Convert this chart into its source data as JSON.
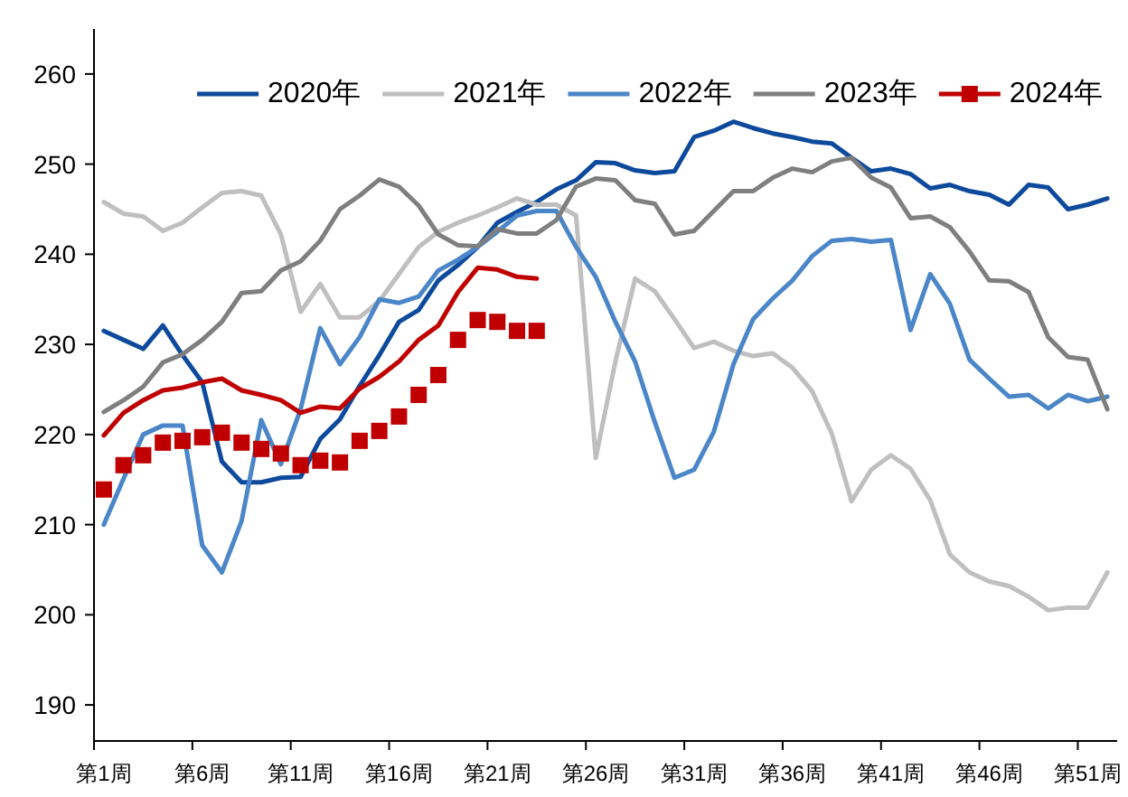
{
  "chart_data": {
    "type": "line",
    "categories": [
      "第1周",
      null,
      null,
      null,
      null,
      "第6周",
      null,
      null,
      null,
      null,
      "第11周",
      null,
      null,
      null,
      null,
      "第16周",
      null,
      null,
      null,
      null,
      "第21周",
      null,
      null,
      null,
      null,
      "第26周",
      null,
      null,
      null,
      null,
      "第31周",
      null,
      null,
      null,
      null,
      "第36周",
      null,
      null,
      null,
      null,
      "第41周",
      null,
      null,
      null,
      null,
      "第46周",
      null,
      null,
      null,
      null,
      "第51周",
      null
    ],
    "ylim": [
      186,
      265
    ],
    "yticks": [
      190,
      200,
      210,
      220,
      230,
      240,
      250,
      260
    ],
    "legend": "top right",
    "series": [
      {
        "name": "2020年",
        "color": "#0e4a9c",
        "values": [
          231.5,
          230.5,
          229.5,
          232.1,
          228.8,
          225.8,
          217,
          214.7,
          214.7,
          215.2,
          215.3,
          219.5,
          221.7,
          225.4,
          228.8,
          232.5,
          233.8,
          237.1,
          238.8,
          240.8,
          243.5,
          244.7,
          245.8,
          247.2,
          248.2,
          250.2,
          250.1,
          249.3,
          249,
          249.2,
          253,
          253.7,
          254.7,
          254,
          253.4,
          253,
          252.5,
          252.3,
          250.7,
          249.2,
          249.5,
          248.9,
          247.3,
          247.7,
          247,
          246.6,
          245.5,
          247.7,
          247.4,
          245,
          245.5,
          246.2
        ]
      },
      {
        "name": "2021年",
        "color": "#bfbfbf",
        "values": [
          245.8,
          244.5,
          244.2,
          242.6,
          243.5,
          245.2,
          246.8,
          247,
          246.5,
          242.2,
          233.6,
          236.7,
          233,
          233,
          234.8,
          237.8,
          240.8,
          242.5,
          243.5,
          244.3,
          245.2,
          246.2,
          245.5,
          245.5,
          244.3,
          217.4,
          228.1,
          237.3,
          235.9,
          232.8,
          229.6,
          230.3,
          229.3,
          228.7,
          229,
          227.4,
          224.8,
          220.1,
          212.6,
          216.1,
          217.7,
          216.2,
          212.7,
          206.7,
          204.7,
          203.7,
          203.2,
          202,
          200.5,
          200.8,
          200.8,
          204.7
        ]
      },
      {
        "name": "2022年",
        "color": "#4a86c8",
        "values": [
          210,
          215.1,
          220,
          221,
          221,
          207.7,
          204.7,
          210.4,
          221.6,
          216.7,
          222.8,
          231.8,
          227.8,
          230.8,
          235,
          234.6,
          235.3,
          238.2,
          239.4,
          240.8,
          242.5,
          244.3,
          244.8,
          244.8,
          240.8,
          237.5,
          232.5,
          228.1,
          221.4,
          215.2,
          216.1,
          220.3,
          227.8,
          232.8,
          235.1,
          237.1,
          239.8,
          241.5,
          241.7,
          241.4,
          241.6,
          231.6,
          237.8,
          234.5,
          228.3,
          226.2,
          224.2,
          224.4,
          222.9,
          224.4,
          223.7,
          224.2
        ]
      },
      {
        "name": "2023年",
        "color": "#7f7f7f",
        "values": [
          222.5,
          223.8,
          225.3,
          228,
          228.9,
          230.5,
          232.5,
          235.7,
          235.9,
          238.2,
          239.2,
          241.5,
          245,
          246.5,
          248.3,
          247.5,
          245.4,
          242.2,
          241,
          240.9,
          242.8,
          242.3,
          242.3,
          243.8,
          247.5,
          248.4,
          248.2,
          246,
          245.6,
          242.2,
          242.6,
          244.8,
          247,
          247,
          248.5,
          249.5,
          249.1,
          250.3,
          250.7,
          248.5,
          247.4,
          244,
          244.2,
          243,
          240.3,
          237.1,
          237,
          235.8,
          230.8,
          228.6,
          228.3,
          222.8
        ]
      },
      {
        "color": "#c00000",
        "values": [
          219.9,
          222.4,
          223.8,
          224.9,
          225.2,
          225.8,
          226.2,
          224.9,
          224.4,
          223.8,
          222.4,
          223.1,
          222.9,
          225.1,
          226.4,
          228.1,
          230.5,
          232.1,
          235.8,
          238.5,
          238.3,
          237.5,
          237.3,
          null,
          null,
          null,
          null,
          null,
          null,
          null,
          null,
          null,
          null,
          null,
          null,
          null,
          null,
          null,
          null,
          null,
          null,
          null,
          null,
          null,
          null,
          null,
          null,
          null,
          null,
          null,
          null,
          null
        ]
      },
      {
        "name": "2024年",
        "type": "scatter",
        "marker": "square",
        "color": "#c00000",
        "values": [
          213.9,
          216.6,
          217.7,
          219.1,
          219.3,
          219.7,
          220.2,
          219.1,
          218.4,
          217.9,
          216.6,
          217.1,
          216.9,
          219.3,
          220.4,
          222,
          224.4,
          226.6,
          230.5,
          232.7,
          232.5,
          231.5,
          231.5,
          null,
          null,
          null,
          null,
          null,
          null,
          null,
          null,
          null,
          null,
          null,
          null,
          null,
          null,
          null,
          null,
          null,
          null,
          null,
          null,
          null,
          null,
          null,
          null,
          null,
          null,
          null,
          null,
          null
        ]
      }
    ]
  }
}
